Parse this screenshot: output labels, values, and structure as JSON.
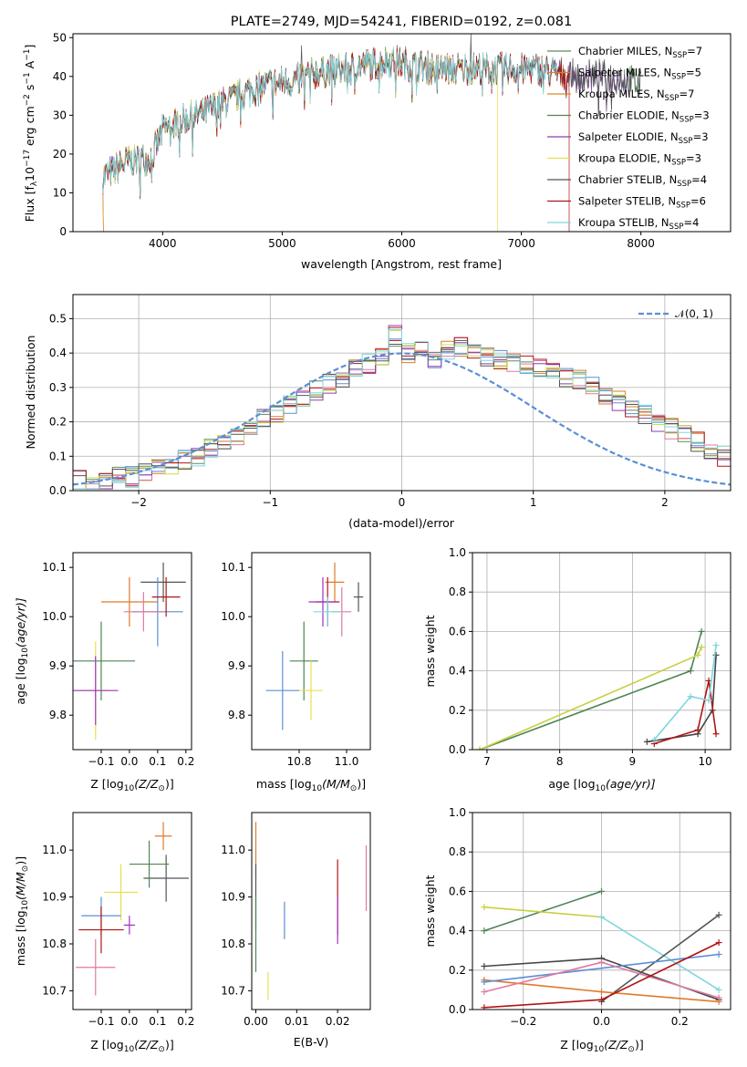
{
  "page": {
    "title": "PLATE=2749, MJD=54241, FIBERID=0192, z=0.081"
  },
  "colors": [
    "#5a8f5e",
    "#e07a2a",
    "#d48a2a",
    "#4f8552",
    "#8e3fb0",
    "#e8e04a",
    "#555555",
    "#b01515",
    "#7fd6dc"
  ],
  "chart_data": [
    {
      "type": "line",
      "title": "PLATE=2749, MJD=54241, FIBERID=0192, z=0.081",
      "xlabel": "wavelength [Angstrom, rest frame]",
      "ylabel": "Flux [f",
      "ylabel_main": "Flux [f",
      "ylabel_sub": "λ",
      "ylabel_rest": "10",
      "ylabel_exp1": "−17",
      "ylabel_mid": " erg cm",
      "ylabel_exp2": "−2",
      "ylabel_mid2": " s",
      "ylabel_exp3": "−1",
      "ylabel_mid3": " A",
      "ylabel_exp4": "−1",
      "ylabel_end": "]",
      "xlim": [
        3250,
        8750
      ],
      "ylim": [
        0,
        51
      ],
      "xticks": [
        "4000",
        "5000",
        "6000",
        "7000",
        "8000"
      ],
      "yticks": [
        "0",
        "10",
        "20",
        "30",
        "40",
        "50"
      ],
      "legend_position": "top-right",
      "continuum": {
        "x": [
          3500,
          3700,
          3900,
          4000,
          4100,
          4200,
          4300,
          4500,
          4700,
          4900,
          5100,
          5300,
          5500,
          5700,
          5900,
          6100,
          6300,
          6500,
          6700,
          6900,
          7100,
          7300,
          7500,
          7700,
          7900,
          8000
        ],
        "y": [
          14,
          18,
          19,
          26,
          28,
          29,
          30,
          33,
          36,
          38,
          39,
          41,
          42,
          43,
          44,
          43,
          42,
          42,
          42,
          42,
          42,
          41,
          40,
          40,
          39,
          38
        ]
      },
      "series": [
        {
          "name": "Chabrier MILES",
          "nssp": "7"
        },
        {
          "name": "Salpeter MILES",
          "nssp": "5"
        },
        {
          "name": "Kroupa MILES",
          "nssp": "7"
        },
        {
          "name": "Chabrier ELODIE",
          "nssp": "3"
        },
        {
          "name": "Salpeter ELODIE",
          "nssp": "3"
        },
        {
          "name": "Kroupa ELODIE",
          "nssp": "3"
        },
        {
          "name": "Chabrier STELIB",
          "nssp": "4"
        },
        {
          "name": "Salpeter STELIB",
          "nssp": "6"
        },
        {
          "name": "Kroupa STELIB",
          "nssp": "4"
        }
      ],
      "nssp_prefix": "N",
      "nssp_sub": "SSP"
    },
    {
      "type": "bar",
      "xlabel": "(data-model)/error",
      "ylabel": "Normed distribution",
      "xlim": [
        -2.5,
        2.5
      ],
      "ylim": [
        0,
        0.57
      ],
      "xticks": [
        "−2",
        "−1",
        "0",
        "1",
        "2"
      ],
      "yticks": [
        "0.0",
        "0.1",
        "0.2",
        "0.3",
        "0.4",
        "0.5"
      ],
      "legend_label": "𝒩(0, 1)",
      "bin_width": 0.1,
      "bins_start": -2.5,
      "hist_values": [
        0.03,
        0.02,
        0.03,
        0.04,
        0.04,
        0.05,
        0.06,
        0.07,
        0.09,
        0.1,
        0.12,
        0.14,
        0.16,
        0.19,
        0.21,
        0.22,
        0.25,
        0.27,
        0.29,
        0.31,
        0.33,
        0.35,
        0.37,
        0.39,
        0.45,
        0.4,
        0.42,
        0.38,
        0.41,
        0.42,
        0.4,
        0.39,
        0.38,
        0.37,
        0.37,
        0.36,
        0.35,
        0.33,
        0.32,
        0.3,
        0.28,
        0.26,
        0.24,
        0.22,
        0.2,
        0.18,
        0.16,
        0.14,
        0.12,
        0.1
      ]
    },
    {
      "type": "scatter",
      "xlabel": "Z [log",
      "xlabel_sub": "10",
      "xlabel_rest": "(Z/Z",
      "xlabel_sun": "⊙",
      "xlabel_end": ")]",
      "ylabel": "age  [log",
      "ylabel_sub": "10",
      "ylabel_rest": "(age/yr)]",
      "xlim": [
        -0.2,
        0.22
      ],
      "ylim": [
        9.73,
        10.13
      ],
      "xticks": [
        "−0.1",
        "0.0",
        "0.1",
        "0.2"
      ],
      "yticks": [
        "9.8",
        "9.9",
        "10.0",
        "10.1"
      ],
      "points": [
        {
          "x": 0.0,
          "y": 10.03,
          "xerr": 0.1,
          "yerr": 0.05
        },
        {
          "x": 0.12,
          "y": 10.07,
          "xerr": 0.08,
          "yerr": 0.04
        },
        {
          "x": -0.1,
          "y": 9.91,
          "xerr": 0.12,
          "yerr": 0.08
        },
        {
          "x": -0.12,
          "y": 9.85,
          "xerr": 0.05,
          "yerr": 0.1
        },
        {
          "x": 0.1,
          "y": 10.01,
          "xerr": 0.09,
          "yerr": 0.07
        },
        {
          "x": 0.13,
          "y": 10.04,
          "xerr": 0.05,
          "yerr": 0.04
        },
        {
          "x": -0.12,
          "y": 9.85,
          "xerr": 0.08,
          "yerr": 0.07
        },
        {
          "x": 0.05,
          "y": 10.01,
          "xerr": 0.07,
          "yerr": 0.04
        }
      ]
    },
    {
      "type": "scatter",
      "xlabel": "mass [log",
      "xlabel_sub": "10",
      "xlabel_rest": "(M/M",
      "xlabel_sun": "⊙",
      "xlabel_end": ")]",
      "xlim": [
        10.6,
        11.1
      ],
      "ylim": [
        9.73,
        10.13
      ],
      "xticks": [
        "10.8",
        "11.0"
      ],
      "yticks": [
        "9.8",
        "9.9",
        "10.0",
        "10.1"
      ],
      "points": [
        {
          "x": 10.95,
          "y": 10.07,
          "xerr": 0.04,
          "yerr": 0.04
        },
        {
          "x": 11.05,
          "y": 10.04,
          "xerr": 0.02,
          "yerr": 0.03
        },
        {
          "x": 10.82,
          "y": 9.91,
          "xerr": 0.06,
          "yerr": 0.08
        },
        {
          "x": 10.85,
          "y": 9.85,
          "xerr": 0.05,
          "yerr": 0.06
        },
        {
          "x": 10.73,
          "y": 9.85,
          "xerr": 0.07,
          "yerr": 0.08
        },
        {
          "x": 10.92,
          "y": 10.03,
          "xerr": 0.05,
          "yerr": 0.05
        },
        {
          "x": 10.9,
          "y": 10.03,
          "xerr": 0.06,
          "yerr": 0.05
        },
        {
          "x": 10.98,
          "y": 10.01,
          "xerr": 0.04,
          "yerr": 0.05
        },
        {
          "x": 10.92,
          "y": 10.01,
          "xerr": 0.06,
          "yerr": 0.03
        }
      ]
    },
    {
      "type": "line",
      "xlabel": "age  [log",
      "xlabel_sub": "10",
      "xlabel_rest": "(age/yr)]",
      "ylabel": "mass weight",
      "xlim": [
        6.8,
        10.35
      ],
      "ylim": [
        0,
        1.0
      ],
      "xticks": [
        "7",
        "8",
        "9",
        "10"
      ],
      "yticks": [
        "0.0",
        "0.2",
        "0.4",
        "0.6",
        "0.8",
        "1.0"
      ],
      "series": [
        {
          "x": [
            6.9,
            9.8,
            9.95
          ],
          "y": [
            0.0,
            0.4,
            0.6
          ]
        },
        {
          "x": [
            6.9,
            9.9,
            9.95
          ],
          "y": [
            0.0,
            0.48,
            0.52
          ]
        },
        {
          "x": [
            9.2,
            9.9,
            10.1,
            10.15
          ],
          "y": [
            0.04,
            0.08,
            0.2,
            0.48
          ]
        },
        {
          "x": [
            9.3,
            9.9,
            10.05,
            10.15
          ],
          "y": [
            0.03,
            0.1,
            0.35,
            0.08
          ]
        },
        {
          "x": [
            9.3,
            9.8,
            10.05,
            10.15
          ],
          "y": [
            0.05,
            0.27,
            0.25,
            0.53
          ]
        }
      ]
    },
    {
      "type": "scatter",
      "xlabel": "Z [log",
      "xlabel_sub": "10",
      "xlabel_rest": "(Z/Z",
      "xlabel_sun": "⊙",
      "xlabel_end": ")]",
      "ylabel": "mass [log",
      "ylabel_sub": "10",
      "ylabel_rest": "(M/M",
      "ylabel_sun": "⊙",
      "ylabel_end": ")]",
      "xlim": [
        -0.2,
        0.22
      ],
      "ylim": [
        10.66,
        11.08
      ],
      "xticks": [
        "−0.1",
        "0.0",
        "0.1",
        "0.2"
      ],
      "yticks": [
        "10.7",
        "10.8",
        "10.9",
        "11.0"
      ],
      "points": [
        {
          "x": 0.12,
          "y": 11.03,
          "xerr": 0.03,
          "yerr": 0.03
        },
        {
          "x": 0.13,
          "y": 10.94,
          "xerr": 0.08,
          "yerr": 0.05
        },
        {
          "x": 0.07,
          "y": 10.97,
          "xerr": 0.07,
          "yerr": 0.05
        },
        {
          "x": -0.03,
          "y": 10.91,
          "xerr": 0.06,
          "yerr": 0.06
        },
        {
          "x": -0.1,
          "y": 10.86,
          "xerr": 0.07,
          "yerr": 0.04
        },
        {
          "x": -0.1,
          "y": 10.83,
          "xerr": 0.08,
          "yerr": 0.05
        },
        {
          "x": 0.0,
          "y": 10.84,
          "xerr": 0.02,
          "yerr": 0.02
        },
        {
          "x": -0.12,
          "y": 10.75,
          "xerr": 0.07,
          "yerr": 0.06
        }
      ]
    },
    {
      "type": "scatter",
      "xlabel": "E(B-V)",
      "xlim": [
        -0.001,
        0.028
      ],
      "ylim": [
        10.66,
        11.08
      ],
      "xticks": [
        "0.00",
        "0.01",
        "0.02"
      ],
      "yticks": [
        "10.7",
        "10.8",
        "10.9",
        "11.0"
      ],
      "points": [
        {
          "x": 0.0,
          "y": 11.0,
          "yerr": 0.06
        },
        {
          "x": 0.0,
          "y": 10.9,
          "yerr": 0.07
        },
        {
          "x": 0.0,
          "y": 10.82,
          "yerr": 0.08
        },
        {
          "x": 0.003,
          "y": 10.71,
          "yerr": 0.03
        },
        {
          "x": 0.007,
          "y": 10.85,
          "yerr": 0.04
        },
        {
          "x": 0.02,
          "y": 10.9,
          "yerr": 0.08
        },
        {
          "x": 0.02,
          "y": 10.85,
          "yerr": 0.05
        },
        {
          "x": 0.027,
          "y": 10.94,
          "yerr": 0.07
        }
      ]
    },
    {
      "type": "line",
      "xlabel": "Z [log",
      "xlabel_sub": "10",
      "xlabel_rest": "(Z/Z",
      "xlabel_sun": "⊙",
      "xlabel_end": ")]",
      "ylabel": "mass weight",
      "xlim": [
        -0.33,
        0.33
      ],
      "ylim": [
        0,
        1.0
      ],
      "xticks": [
        "−0.2",
        "0.0",
        "0.2"
      ],
      "yticks": [
        "0.0",
        "0.2",
        "0.4",
        "0.6",
        "0.8",
        "1.0"
      ],
      "series": [
        {
          "x": [
            -0.3,
            0.0
          ],
          "y": [
            0.4,
            0.6
          ]
        },
        {
          "x": [
            -0.3,
            0.0
          ],
          "y": [
            0.52,
            0.47
          ]
        },
        {
          "x": [
            0.0,
            0.3
          ],
          "y": [
            0.47,
            0.1
          ]
        },
        {
          "x": [
            -0.3,
            0.0,
            0.3
          ],
          "y": [
            0.22,
            0.26,
            0.05
          ]
        },
        {
          "x": [
            0.0,
            0.3
          ],
          "y": [
            0.04,
            0.48
          ]
        },
        {
          "x": [
            -0.3,
            0.0,
            0.3
          ],
          "y": [
            0.15,
            0.09,
            0.04
          ]
        },
        {
          "x": [
            -0.3,
            0.3
          ],
          "y": [
            0.14,
            0.28
          ]
        },
        {
          "x": [
            -0.3,
            0.0,
            0.3
          ],
          "y": [
            0.09,
            0.24,
            0.06
          ]
        },
        {
          "x": [
            -0.3,
            0.0,
            0.3
          ],
          "y": [
            0.01,
            0.05,
            0.34
          ]
        }
      ]
    }
  ]
}
